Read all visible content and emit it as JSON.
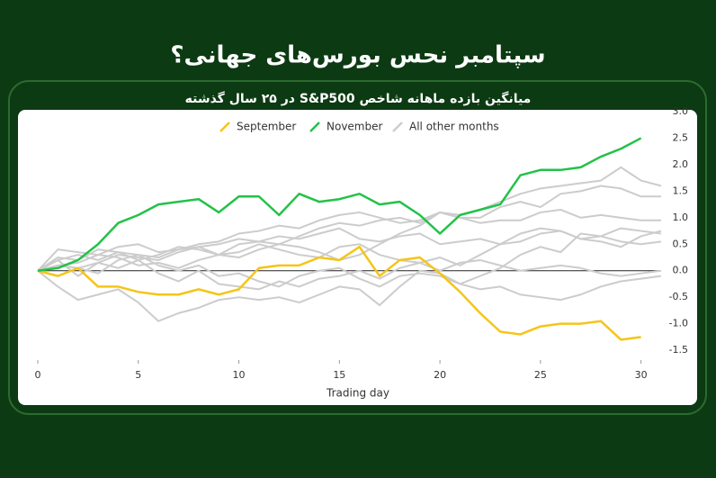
{
  "chart_data": {
    "type": "line",
    "title": "سپتامبر نحس بورس‌های جهانی؟",
    "subtitle": "میانگین بازده ماهانه شاخص S&P500 در ۲۵ سال گذشته",
    "x_label": "Trading day",
    "legend": "top",
    "xlim": [
      0,
      31
    ],
    "xticks": [
      0,
      5,
      10,
      15,
      20,
      25,
      30
    ],
    "ylim": [
      -1.6,
      3.0
    ],
    "yticks": [
      -1.5,
      {
        "value": -1,
        "label": "-1.0"
      },
      -0.5,
      {
        "value": 0,
        "label": "0.0"
      },
      0.5,
      {
        "value": 1,
        "label": "1.0"
      },
      1.5,
      {
        "value": 2,
        "label": "2.0"
      },
      2.5,
      {
        "value": 3,
        "label": "3.0"
      }
    ],
    "x": [
      0,
      1,
      2,
      3,
      4,
      5,
      6,
      7,
      8,
      9,
      10,
      11,
      12,
      13,
      14,
      15,
      16,
      17,
      18,
      19,
      20,
      21,
      22,
      23,
      24,
      25,
      26,
      27,
      28,
      29,
      30,
      31
    ],
    "series": [
      {
        "name": "September",
        "color": "#f5c518",
        "values": [
          0,
          -0.1,
          0.05,
          -0.3,
          -0.3,
          -0.4,
          -0.45,
          -0.45,
          -0.35,
          -0.45,
          -0.35,
          0.05,
          0.1,
          0.1,
          0.25,
          0.2,
          0.45,
          -0.1,
          0.2,
          0.25,
          -0.05,
          -0.4,
          -0.8,
          -1.15,
          -1.2,
          -1.05,
          -1.0,
          -1.0,
          -0.95,
          -1.3,
          -1.25,
          null
        ]
      },
      {
        "name": "November",
        "color": "#22c248",
        "values": [
          0,
          0.05,
          0.2,
          0.5,
          0.9,
          1.05,
          1.25,
          1.3,
          1.35,
          1.1,
          1.4,
          1.4,
          1.05,
          1.45,
          1.3,
          1.35,
          1.45,
          1.25,
          1.3,
          1.05,
          0.7,
          1.05,
          1.15,
          1.25,
          1.8,
          1.9,
          1.9,
          1.95,
          2.15,
          2.3,
          2.5,
          null
        ]
      },
      {
        "name": "All other months",
        "color": "#cccccc",
        "values": [
          [
            0,
            0.4,
            0.35,
            0.3,
            0.45,
            0.5,
            0.35,
            0.4,
            0.5,
            0.55,
            0.7,
            0.75,
            0.85,
            0.8,
            0.95,
            1.05,
            1.1,
            1.0,
            0.9,
            0.95,
            1.1,
            1.05,
            1.15,
            1.3,
            1.45,
            1.55,
            1.6,
            1.65,
            1.7,
            1.95,
            1.7,
            1.6
          ],
          [
            0,
            0.2,
            0.3,
            0.2,
            0.35,
            0.3,
            0.25,
            0.4,
            0.45,
            0.5,
            0.6,
            0.55,
            0.5,
            0.65,
            0.8,
            0.9,
            0.85,
            0.95,
            1.0,
            0.9,
            1.1,
            1.0,
            1.0,
            1.2,
            1.3,
            1.2,
            1.45,
            1.5,
            1.6,
            1.55,
            1.4,
            1.4
          ],
          [
            0,
            -0.3,
            -0.55,
            -0.45,
            -0.35,
            -0.6,
            -0.95,
            -0.8,
            -0.7,
            -0.55,
            -0.5,
            -0.55,
            -0.5,
            -0.6,
            -0.45,
            -0.3,
            -0.35,
            -0.65,
            -0.3,
            0.0,
            -0.05,
            -0.25,
            -0.1,
            0.05,
            0.3,
            0.45,
            0.35,
            0.7,
            0.65,
            0.8,
            0.75,
            0.7
          ],
          [
            0,
            0.1,
            0.05,
            0.15,
            0.3,
            0.25,
            0.2,
            0.35,
            0.45,
            0.3,
            0.5,
            0.55,
            0.65,
            0.6,
            0.7,
            0.8,
            0.6,
            0.55,
            0.65,
            0.7,
            0.5,
            0.55,
            0.6,
            0.5,
            0.55,
            0.7,
            0.75,
            0.6,
            0.65,
            0.55,
            0.5,
            0.55
          ],
          [
            0,
            -0.1,
            0.05,
            -0.05,
            0.2,
            0.3,
            0.1,
            0.0,
            0.1,
            -0.1,
            -0.05,
            -0.2,
            -0.3,
            -0.1,
            0.0,
            0.05,
            -0.15,
            -0.3,
            -0.1,
            -0.05,
            -0.1,
            -0.25,
            -0.35,
            -0.3,
            -0.45,
            -0.5,
            -0.55,
            -0.45,
            -0.3,
            -0.2,
            -0.15,
            -0.1
          ],
          [
            0,
            0.25,
            0.2,
            0.4,
            0.35,
            0.2,
            0.3,
            0.45,
            0.4,
            0.3,
            0.35,
            0.5,
            0.4,
            0.3,
            0.25,
            0.45,
            0.5,
            0.3,
            0.2,
            0.15,
            0.0,
            0.15,
            0.2,
            0.1,
            0.0,
            0.05,
            0.1,
            0.05,
            -0.05,
            -0.1,
            -0.05,
            0.0
          ],
          [
            0,
            0.2,
            -0.1,
            0.15,
            0.05,
            0.2,
            -0.05,
            -0.2,
            0.0,
            -0.25,
            -0.3,
            -0.35,
            -0.2,
            -0.3,
            -0.15,
            -0.1,
            0.0,
            -0.15,
            0.05,
            0.15,
            0.25,
            0.1,
            0.3,
            0.5,
            0.7,
            0.8,
            0.75,
            0.6,
            0.55,
            0.45,
            0.65,
            0.75
          ],
          [
            0,
            0.1,
            0.15,
            0.3,
            0.25,
            0.1,
            0.15,
            0.05,
            0.2,
            0.3,
            0.25,
            0.4,
            0.5,
            0.45,
            0.35,
            0.2,
            0.3,
            0.5,
            0.7,
            0.85,
            1.1,
            1.0,
            0.9,
            0.95,
            0.95,
            1.1,
            1.15,
            1.0,
            1.05,
            1.0,
            0.95,
            0.95
          ]
        ]
      }
    ]
  }
}
